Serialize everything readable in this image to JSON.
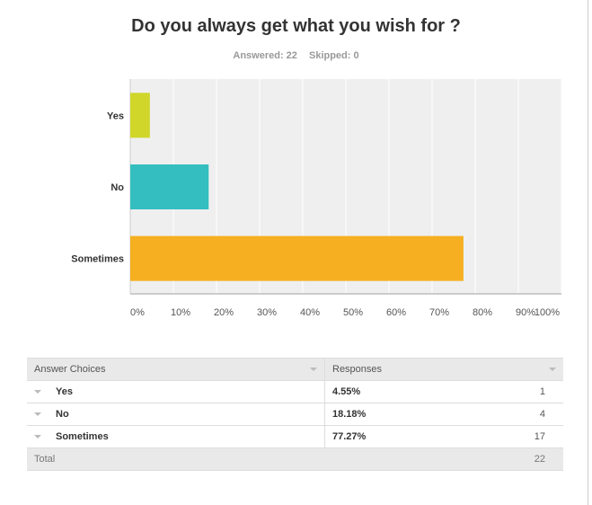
{
  "chart_data": {
    "type": "bar",
    "orientation": "horizontal",
    "title": "Do you always get what you wish for ?",
    "answered_label": "Answered: 22",
    "skipped_label": "Skipped: 0",
    "categories": [
      "Yes",
      "No",
      "Sometimes"
    ],
    "values": [
      4.55,
      18.18,
      77.27
    ],
    "colors": [
      "#d0d62a",
      "#34bec0",
      "#f5af20"
    ],
    "xlim": [
      0,
      100
    ],
    "xticks": [
      "0%",
      "10%",
      "20%",
      "30%",
      "40%",
      "50%",
      "60%",
      "70%",
      "80%",
      "90%",
      "100%"
    ],
    "grid": true,
    "plot_background": "#efefef"
  },
  "table": {
    "headers": [
      "Answer Choices",
      "Responses"
    ],
    "rows": [
      {
        "choice": "Yes",
        "percent": "4.55%",
        "count": "1"
      },
      {
        "choice": "No",
        "percent": "18.18%",
        "count": "4"
      },
      {
        "choice": "Sometimes",
        "percent": "77.27%",
        "count": "17"
      }
    ],
    "total_label": "Total",
    "total_count": "22"
  }
}
